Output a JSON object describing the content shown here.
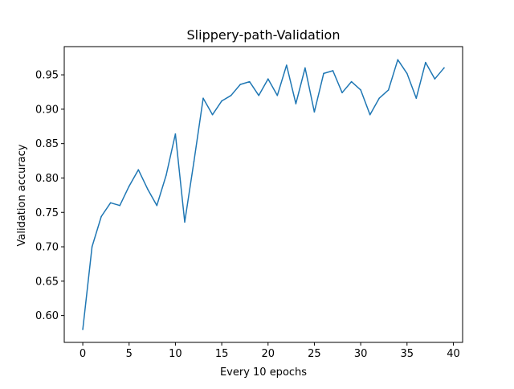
{
  "chart_data": {
    "type": "line",
    "title": "Slippery-path-Validation",
    "xlabel": "Every 10 epochs",
    "ylabel": "Validation accuracy",
    "xlim": [
      -2,
      41
    ],
    "ylim": [
      0.561,
      0.991
    ],
    "xticks": [
      0,
      5,
      10,
      15,
      20,
      25,
      30,
      35,
      40
    ],
    "xtick_labels": [
      "0",
      "5",
      "10",
      "15",
      "20",
      "25",
      "30",
      "35",
      "40"
    ],
    "yticks": [
      0.6,
      0.65,
      0.7,
      0.75,
      0.8,
      0.85,
      0.9,
      0.95
    ],
    "ytick_labels": [
      "0.60",
      "0.65",
      "0.70",
      "0.75",
      "0.80",
      "0.85",
      "0.90",
      "0.95"
    ],
    "grid": false,
    "line_color": "#1f77b4",
    "series": [
      {
        "x": [
          0,
          1,
          2,
          3,
          4,
          5,
          6,
          7,
          8,
          9,
          10,
          11,
          12,
          13,
          14,
          15,
          16,
          17,
          18,
          19,
          20,
          21,
          22,
          23,
          24,
          25,
          26,
          27,
          28,
          29,
          30,
          31,
          32,
          33,
          34,
          35,
          36,
          37,
          38,
          39
        ],
        "values": [
          0.58,
          0.7,
          0.744,
          0.764,
          0.76,
          0.788,
          0.812,
          0.784,
          0.76,
          0.804,
          0.864,
          0.736,
          0.824,
          0.916,
          0.892,
          0.912,
          0.92,
          0.936,
          0.94,
          0.92,
          0.944,
          0.92,
          0.964,
          0.908,
          0.96,
          0.896,
          0.952,
          0.956,
          0.924,
          0.94,
          0.928,
          0.892,
          0.916,
          0.928,
          0.972,
          0.952,
          0.916,
          0.968,
          0.944,
          0.96
        ]
      }
    ]
  }
}
